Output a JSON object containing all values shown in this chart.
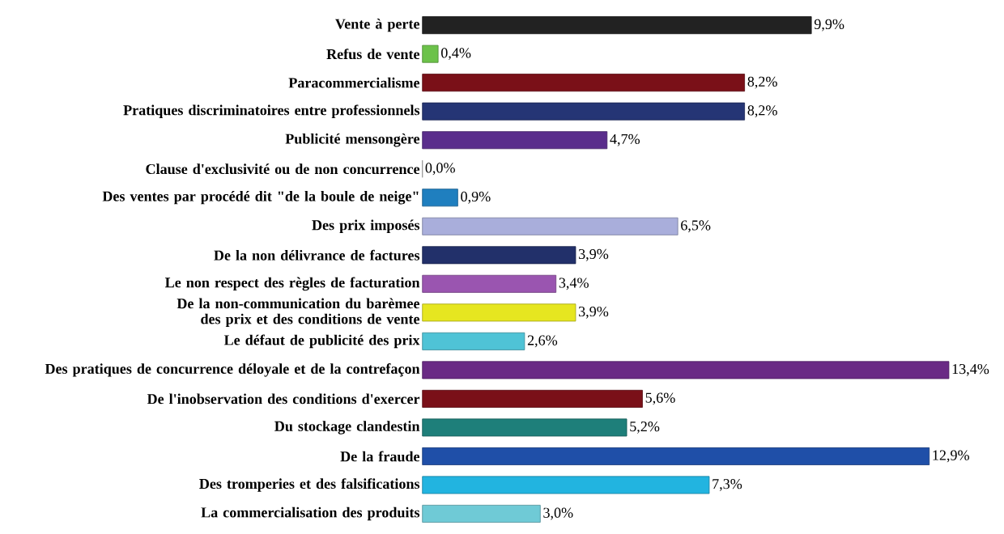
{
  "chart_data": {
    "type": "bar",
    "orientation": "horizontal",
    "categories": [
      "Vente à perte",
      "Refus de vente",
      "Paracommercialisme",
      "Pratiques discriminatoires entre professionnels",
      "Publicité mensongère",
      "Clause d'exclusivité ou de non concurrence",
      "Des ventes par procédé dit \"de la boule de neige\"",
      "Des prix imposés",
      "De la non délivrance de factures",
      "Le non respect des règles de facturation",
      "De la non-communication du barèmee des prix et des conditions de vente",
      "Le défaut de publicité des prix",
      "Des pratiques de concurrence déloyale et de la contrefaçon",
      "De l'inobservation des conditions d'exercer",
      "Du stockage clandestin",
      "De la fraude",
      "Des tromperies et des falsifications",
      "La commercialisation des produits"
    ],
    "values": [
      9.9,
      0.4,
      8.2,
      8.2,
      4.7,
      0.0,
      0.9,
      6.5,
      3.9,
      3.4,
      3.9,
      2.6,
      13.4,
      5.6,
      5.2,
      12.9,
      7.3,
      3.0
    ],
    "value_labels": [
      "9,9%",
      "0,4%",
      "8,2%",
      "8,2%",
      "4,7%",
      "0,0%",
      "0,9%",
      "6,5%",
      "3,9%",
      "3,4%",
      "3,9%",
      "2,6%",
      "13,4%",
      "5,6%",
      "5,2%",
      "12,9%",
      "7,3%",
      "3,0%"
    ],
    "colors": [
      "#222222",
      "#6cc24a",
      "#7a1018",
      "#253575",
      "#5a2d8c",
      "#cccccc",
      "#1f7fbf",
      "#a9aedb",
      "#22306a",
      "#9a55b0",
      "#e6e620",
      "#4fc3d6",
      "#6a2a85",
      "#7a1018",
      "#1e7f7a",
      "#1f4fa8",
      "#22b4e0",
      "#6fcad6"
    ]
  }
}
